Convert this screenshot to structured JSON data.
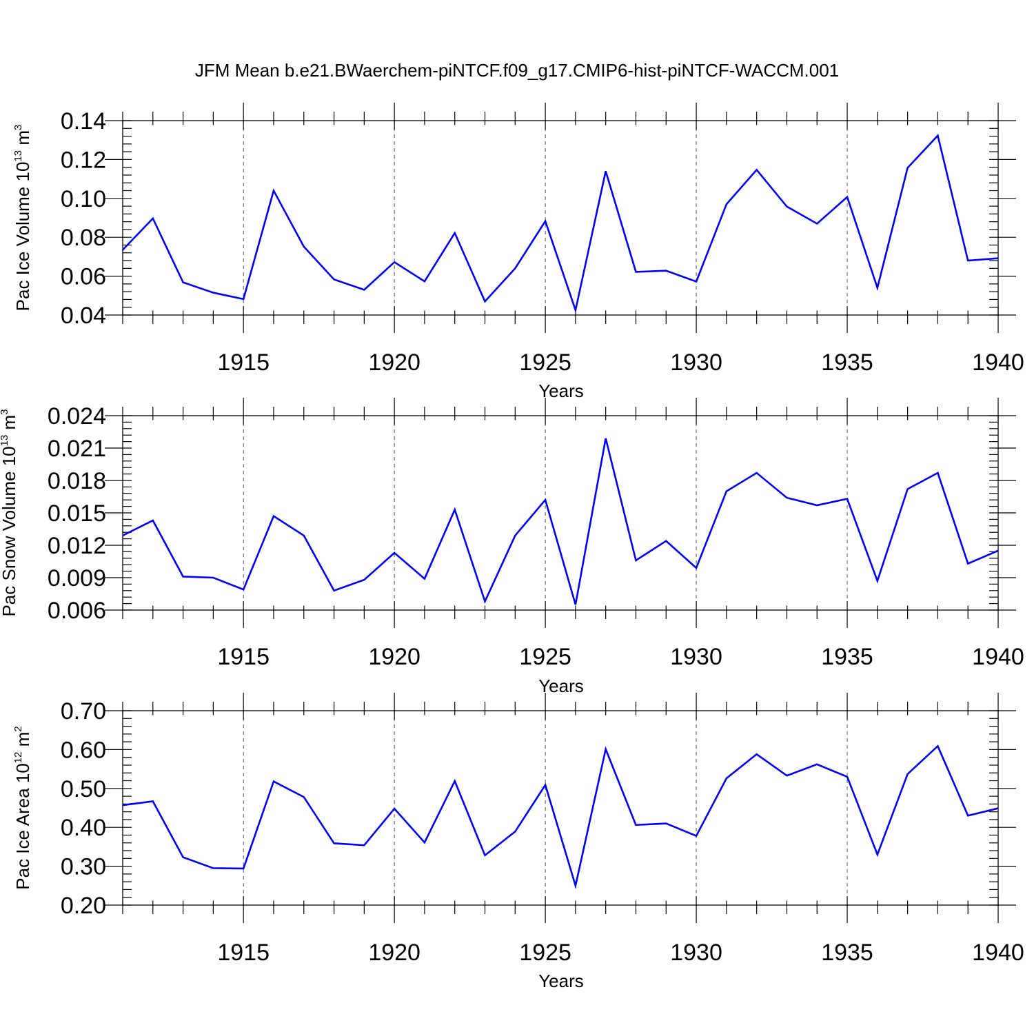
{
  "title": "JFM Mean b.e21.BWaerchem-piNTCF.f09_g17.CMIP6-hist-piNTCF-WACCM.001",
  "colors": {
    "line": "#0000ff",
    "axes": "#000000"
  },
  "chart_data": [
    {
      "type": "line",
      "xlabel": "Years",
      "ylabel": {
        "text": "Pac Ice Volume 10",
        "exp": "13",
        "unit": " m",
        "unit_exp": "3"
      },
      "xlim": [
        1911,
        1940
      ],
      "ylim": [
        0.04,
        0.14
      ],
      "yticks": [
        "0.04",
        "0.06",
        "0.08",
        "0.10",
        "0.12",
        "0.14"
      ],
      "xticks": [
        "1915",
        "1920",
        "1925",
        "1930",
        "1935",
        "1940"
      ],
      "grid": "vertical dashed at major x ticks",
      "x": [
        1911,
        1912,
        1913,
        1914,
        1915,
        1916,
        1917,
        1918,
        1919,
        1920,
        1921,
        1922,
        1923,
        1924,
        1925,
        1926,
        1927,
        1928,
        1929,
        1930,
        1931,
        1932,
        1933,
        1934,
        1935,
        1936,
        1937,
        1938,
        1939,
        1940
      ],
      "series": [
        {
          "values": [
            0.0735,
            0.0897,
            0.0568,
            0.0515,
            0.0482,
            0.104,
            0.0752,
            0.0583,
            0.053,
            0.0672,
            0.0573,
            0.0822,
            0.047,
            0.064,
            0.0883,
            0.0425,
            0.114,
            0.0622,
            0.0628,
            0.0572,
            0.097,
            0.1147,
            0.0958,
            0.087,
            0.1007,
            0.054,
            0.1157,
            0.1323,
            0.068,
            0.0692
          ]
        }
      ]
    },
    {
      "type": "line",
      "xlabel": "Years",
      "ylabel": {
        "text": "Pac Snow Volume 10",
        "exp": "13",
        "unit": " m",
        "unit_exp": "3"
      },
      "xlim": [
        1911,
        1940
      ],
      "ylim": [
        0.006,
        0.024
      ],
      "yticks": [
        "0.006",
        "0.009",
        "0.012",
        "0.015",
        "0.018",
        "0.021",
        "0.024"
      ],
      "xticks": [
        "1915",
        "1920",
        "1925",
        "1930",
        "1935",
        "1940"
      ],
      "grid": "vertical dashed at major x ticks",
      "x": [
        1911,
        1912,
        1913,
        1914,
        1915,
        1916,
        1917,
        1918,
        1919,
        1920,
        1921,
        1922,
        1923,
        1924,
        1925,
        1926,
        1927,
        1928,
        1929,
        1930,
        1931,
        1932,
        1933,
        1934,
        1935,
        1936,
        1937,
        1938,
        1939,
        1940
      ],
      "series": [
        {
          "values": [
            0.0129,
            0.0143,
            0.0091,
            0.009,
            0.0079,
            0.0147,
            0.0129,
            0.0078,
            0.0088,
            0.0113,
            0.0089,
            0.0153,
            0.0068,
            0.0129,
            0.0162,
            0.0065,
            0.0219,
            0.0106,
            0.0124,
            0.0099,
            0.017,
            0.0187,
            0.0164,
            0.0157,
            0.0163,
            0.0087,
            0.0172,
            0.0187,
            0.0103,
            0.0115
          ]
        }
      ]
    },
    {
      "type": "line",
      "xlabel": "Years",
      "ylabel": {
        "text": "Pac Ice Area 10",
        "exp": "12",
        "unit": " m",
        "unit_exp": "2"
      },
      "xlim": [
        1911,
        1940
      ],
      "ylim": [
        0.2,
        0.7
      ],
      "yticks": [
        "0.20",
        "0.30",
        "0.40",
        "0.50",
        "0.60",
        "0.70"
      ],
      "xticks": [
        "1915",
        "1920",
        "1925",
        "1930",
        "1935",
        "1940"
      ],
      "grid": "vertical dashed at major x ticks",
      "x": [
        1911,
        1912,
        1913,
        1914,
        1915,
        1916,
        1917,
        1918,
        1919,
        1920,
        1921,
        1922,
        1923,
        1924,
        1925,
        1926,
        1927,
        1928,
        1929,
        1930,
        1931,
        1932,
        1933,
        1934,
        1935,
        1936,
        1937,
        1938,
        1939,
        1940
      ],
      "series": [
        {
          "values": [
            0.457,
            0.467,
            0.323,
            0.295,
            0.294,
            0.518,
            0.478,
            0.359,
            0.354,
            0.448,
            0.361,
            0.519,
            0.328,
            0.389,
            0.509,
            0.25,
            0.601,
            0.406,
            0.41,
            0.378,
            0.526,
            0.588,
            0.533,
            0.562,
            0.53,
            0.33,
            0.537,
            0.609,
            0.43,
            0.449
          ]
        }
      ]
    }
  ]
}
